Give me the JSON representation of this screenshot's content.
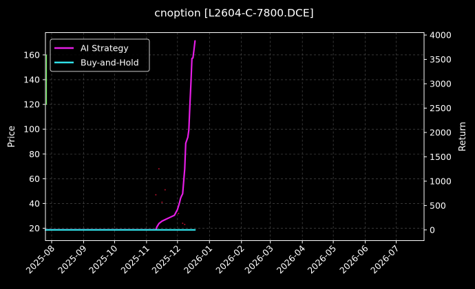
{
  "chart_data": {
    "type": "line",
    "title": "cnoption [L2604-C-7800.DCE]",
    "xlabel": "",
    "ylabel_left": "Price",
    "ylabel_right": "Return",
    "x_ticks": [
      "2025-08",
      "2025-09",
      "2025-10",
      "2025-11",
      "2025-12",
      "2026-01",
      "2026-02",
      "2026-03",
      "2026-04",
      "2026-05",
      "2026-06",
      "2026-07"
    ],
    "x_range": [
      "2025-07-26",
      "2026-07-28"
    ],
    "y_left_ticks": [
      20,
      40,
      60,
      80,
      100,
      120,
      140,
      160
    ],
    "y_left_range": [
      10,
      178
    ],
    "y_right_ticks": [
      0,
      500,
      1000,
      1500,
      2000,
      2500,
      3000,
      3500,
      4000
    ],
    "y_right_range": [
      -220,
      4050
    ],
    "grid": true,
    "legend_position": "top-left",
    "series": [
      {
        "name": "AI Strategy",
        "axis": "right",
        "color": "#e61ee6",
        "points": [
          [
            "2025-07-26",
            0
          ],
          [
            "2025-11-10",
            0
          ],
          [
            "2025-11-11",
            60
          ],
          [
            "2025-11-13",
            130
          ],
          [
            "2025-11-16",
            180
          ],
          [
            "2025-11-20",
            220
          ],
          [
            "2025-11-24",
            260
          ],
          [
            "2025-11-28",
            300
          ],
          [
            "2025-12-01",
            420
          ],
          [
            "2025-12-03",
            560
          ],
          [
            "2025-12-04",
            650
          ],
          [
            "2025-12-05",
            700
          ],
          [
            "2025-12-06",
            740
          ],
          [
            "2025-12-08",
            1250
          ],
          [
            "2025-12-09",
            1780
          ],
          [
            "2025-12-11",
            1900
          ],
          [
            "2025-12-12",
            2050
          ],
          [
            "2025-12-13",
            2550
          ],
          [
            "2025-12-14",
            3000
          ],
          [
            "2025-12-15",
            3520
          ],
          [
            "2025-12-16",
            3530
          ],
          [
            "2025-12-17",
            3700
          ],
          [
            "2025-12-18",
            3880
          ]
        ]
      },
      {
        "name": "Buy-and-Hold",
        "axis": "right",
        "color": "#30e0e8",
        "points": [
          [
            "2025-07-26",
            0
          ],
          [
            "2025-12-18",
            0
          ]
        ]
      },
      {
        "name": "",
        "axis": "left",
        "color": "#7cff6a",
        "points": [
          [
            "2025-07-27",
            160
          ],
          [
            "2025-07-27",
            120
          ]
        ]
      }
    ],
    "scatter_markers": {
      "axis": "left",
      "color": "#b0102a",
      "points": [
        [
          "2025-11-13",
          68
        ],
        [
          "2025-11-10",
          47
        ],
        [
          "2025-11-19",
          51
        ],
        [
          "2025-11-16",
          41
        ],
        [
          "2025-12-06",
          24
        ],
        [
          "2025-12-08",
          23
        ],
        [
          "2025-12-02",
          32
        ]
      ]
    }
  },
  "legend": [
    {
      "label": "AI Strategy",
      "color": "#e61ee6"
    },
    {
      "label": "Buy-and-Hold",
      "color": "#30e0e8"
    }
  ]
}
